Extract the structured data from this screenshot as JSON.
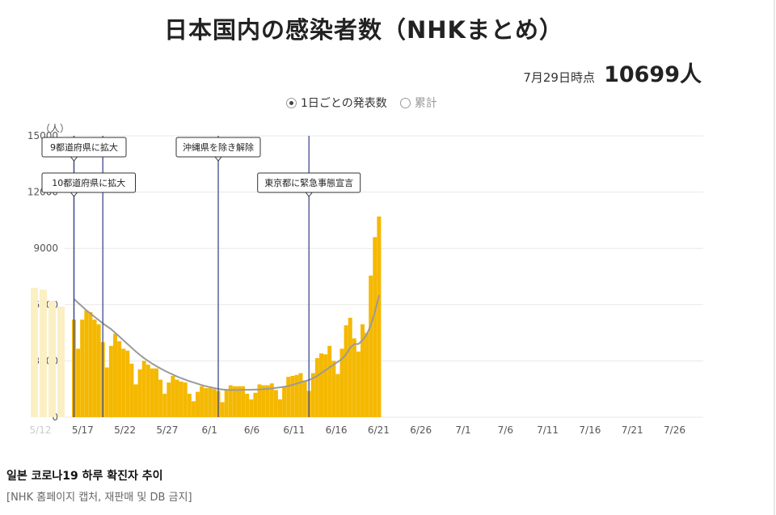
{
  "header": {
    "title": "日本国内の感染者数（NHKまとめ）",
    "as_of_date": "7月29日時点",
    "as_of_count": "10699人"
  },
  "toggle": {
    "option_daily": "1日ごとの発表数",
    "option_cumulative": "累計",
    "selected": "daily"
  },
  "caption": {
    "headline": "일본 코로나19 하루 확진자 추이",
    "credit": "[NHK 홈페이지 캡처, 재판매 및 DB 금지]"
  },
  "colors": {
    "bar": "#f5b800",
    "line": "#9a9a9a",
    "marker_line": "#3d4a8c",
    "grid": "#e8e8e8",
    "ghost": "#fbefc4"
  },
  "chart_data": {
    "type": "bar",
    "unit_label": "（人）",
    "ylim": [
      0,
      15000
    ],
    "yticks": [
      0,
      3000,
      6000,
      9000,
      12000,
      15000
    ],
    "x_tick_labels": [
      "5/12",
      "5/17",
      "5/22",
      "5/27",
      "6/1",
      "6/6",
      "6/11",
      "6/16",
      "6/21",
      "6/26",
      "7/1",
      "7/6",
      "7/11",
      "7/16",
      "7/21",
      "7/26"
    ],
    "start_label": "5/12",
    "grid": true,
    "ghost_values": [
      6900,
      6800,
      6200,
      5900
    ],
    "series": [
      {
        "type": "bar",
        "values": [
          5200,
          3650,
          5200,
          5700,
          5600,
          5200,
          4950,
          4000,
          2650,
          3800,
          4450,
          4050,
          3650,
          3550,
          2850,
          1750,
          2550,
          3000,
          2800,
          2600,
          2600,
          2000,
          1250,
          1850,
          2200,
          2000,
          1900,
          1850,
          1250,
          850,
          1350,
          1650,
          1550,
          1550,
          1500,
          1400,
          800,
          1450,
          1700,
          1650,
          1650,
          1650,
          1250,
          950,
          1300,
          1750,
          1700,
          1700,
          1800,
          1450,
          950,
          1650,
          2150,
          2200,
          2250,
          2350,
          1950,
          1400,
          2350,
          3150,
          3400,
          3350,
          3800,
          3000,
          2300,
          3650,
          4900,
          5300,
          4200,
          3500,
          4950,
          4500,
          7550,
          9600,
          10699
        ]
      },
      {
        "type": "line",
        "values": [
          6300,
          6100,
          5900,
          5700,
          5520,
          5350,
          5180,
          5000,
          4850,
          4700,
          4500,
          4300,
          4100,
          3900,
          3700,
          3500,
          3320,
          3150,
          3000,
          2850,
          2720,
          2600,
          2480,
          2370,
          2270,
          2170,
          2080,
          2000,
          1920,
          1850,
          1780,
          1710,
          1650,
          1600,
          1550,
          1510,
          1480,
          1460,
          1450,
          1450,
          1450,
          1460,
          1460,
          1460,
          1470,
          1480,
          1490,
          1510,
          1530,
          1560,
          1590,
          1620,
          1660,
          1720,
          1790,
          1860,
          1920,
          1980,
          2080,
          2200,
          2350,
          2500,
          2650,
          2800,
          2950,
          3100,
          3350,
          3700,
          3900,
          3900,
          4100,
          4400,
          4900,
          5600,
          6500
        ]
      }
    ],
    "annotations": [
      {
        "index": 0,
        "label": "9都道府県に拡大",
        "label_row": 0
      },
      {
        "index": 0,
        "label": "10都道府県に拡大",
        "label_row": 1
      },
      {
        "index": 7,
        "label": "",
        "label_row": 1
      },
      {
        "index": 35,
        "label": "沖縄県を除き解除",
        "label_row": 0
      },
      {
        "index": 57,
        "label": "東京都に緊急事態宣言",
        "label_row": 1
      }
    ]
  }
}
